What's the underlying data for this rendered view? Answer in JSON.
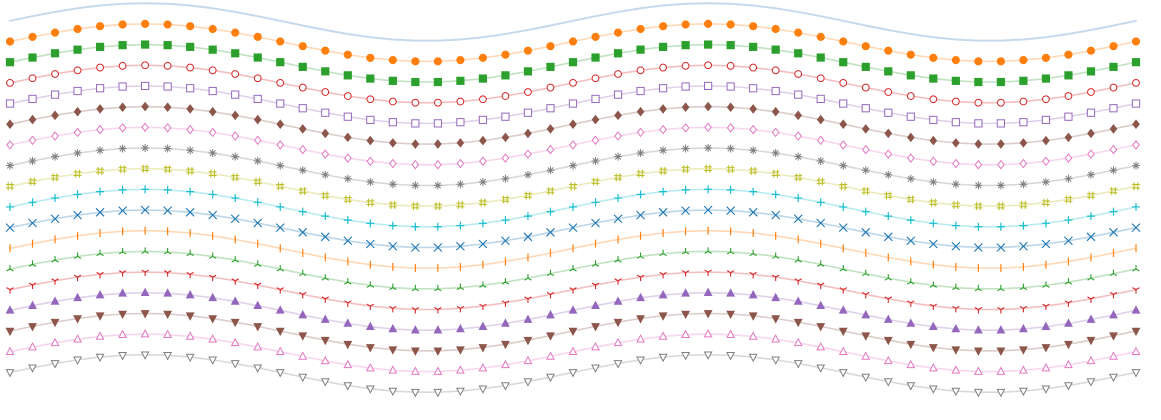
{
  "chart_data": {
    "type": "line",
    "title": "",
    "xlabel": "",
    "ylabel": "",
    "grid": false,
    "legend": "none",
    "axes_visible": false,
    "x_range": [
      0,
      1
    ],
    "y_range": [
      0,
      1
    ],
    "point_count": 51,
    "wave": {
      "cycles": 2,
      "amplitude": 0.05,
      "phase_start": 0.0
    },
    "series": [
      {
        "color": "#c6d9ec",
        "marker": "none",
        "filled": false,
        "baseline": 0.0
      },
      {
        "color": "#ff7f0e",
        "marker": "circle",
        "filled": true,
        "baseline": 0.055
      },
      {
        "color": "#2ca02c",
        "marker": "square",
        "filled": true,
        "baseline": 0.11
      },
      {
        "color": "#d62728",
        "marker": "circle",
        "filled": false,
        "baseline": 0.165
      },
      {
        "color": "#9467bd",
        "marker": "square",
        "filled": false,
        "baseline": 0.22
      },
      {
        "color": "#8c564b",
        "marker": "diamond",
        "filled": true,
        "baseline": 0.275
      },
      {
        "color": "#e377c2",
        "marker": "diamond",
        "filled": false,
        "baseline": 0.33
      },
      {
        "color": "#7f7f7f",
        "marker": "star",
        "filled": false,
        "baseline": 0.385
      },
      {
        "color": "#bcbd22",
        "marker": "hash",
        "filled": false,
        "baseline": 0.44
      },
      {
        "color": "#17becf",
        "marker": "plus",
        "filled": false,
        "baseline": 0.495
      },
      {
        "color": "#1f77b4",
        "marker": "x",
        "filled": false,
        "baseline": 0.55
      },
      {
        "color": "#ff7f0e",
        "marker": "vline",
        "filled": false,
        "baseline": 0.605
      },
      {
        "color": "#2ca02c",
        "marker": "tri_up_thin",
        "filled": false,
        "baseline": 0.66
      },
      {
        "color": "#d62728",
        "marker": "tri_down_thin",
        "filled": false,
        "baseline": 0.715
      },
      {
        "color": "#9467bd",
        "marker": "triangle_up",
        "filled": true,
        "baseline": 0.77
      },
      {
        "color": "#8c564b",
        "marker": "triangle_down",
        "filled": true,
        "baseline": 0.825
      },
      {
        "color": "#e377c2",
        "marker": "triangle_up",
        "filled": false,
        "baseline": 0.88
      },
      {
        "color": "#7f7f7f",
        "marker": "triangle_down",
        "filled": false,
        "baseline": 0.935
      }
    ]
  }
}
